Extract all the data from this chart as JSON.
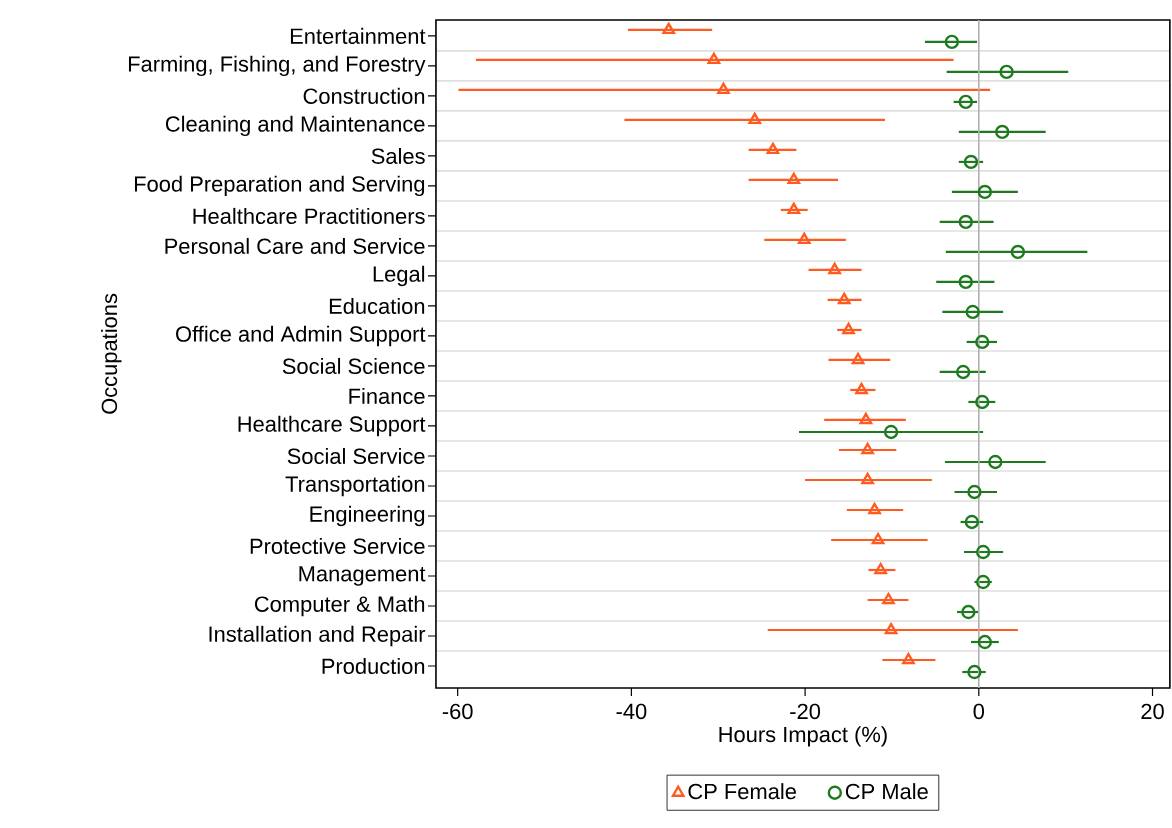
{
  "chart_data": {
    "type": "scatter",
    "orientation": "horizontal",
    "xlabel": "Hours Impact (%)",
    "ylabel": "Occupations",
    "categories": [
      "Entertainment",
      "Farming, Fishing, and Forestry",
      "Construction",
      "Cleaning and Maintenance",
      "Sales",
      "Food Preparation and Serving",
      "Healthcare Practitioners",
      "Personal Care and Service",
      "Legal",
      "Education",
      "Office and Admin Support",
      "Social Science",
      "Finance",
      "Healthcare Support",
      "Social Service",
      "Transportation",
      "Engineering",
      "Protective Service",
      "Management",
      "Computer & Math",
      "Installation and Repair",
      "Production"
    ],
    "series": [
      {
        "name": "CP Female",
        "color": "#ff5a1f",
        "marker": "triangle",
        "values": [
          -35.7,
          -30.5,
          -29.4,
          -25.8,
          -23.7,
          -21.3,
          -21.3,
          -20.1,
          -16.6,
          -15.5,
          -15.0,
          -13.9,
          -13.5,
          -13.0,
          -12.8,
          -12.8,
          -12.0,
          -11.6,
          -11.3,
          -10.4,
          -10.1,
          -8.1
        ],
        "errors": [
          [
            -40.4,
            -30.7
          ],
          [
            -57.9,
            -2.9
          ],
          [
            -59.9,
            1.3
          ],
          [
            -40.8,
            -10.8
          ],
          [
            -26.5,
            -21.0
          ],
          [
            -26.5,
            -16.2
          ],
          [
            -22.8,
            -19.7
          ],
          [
            -24.7,
            -15.3
          ],
          [
            -19.6,
            -13.5
          ],
          [
            -17.4,
            -13.5
          ],
          [
            -16.3,
            -13.5
          ],
          [
            -17.3,
            -10.2
          ],
          [
            -14.8,
            -11.9
          ],
          [
            -17.8,
            -8.4
          ],
          [
            -16.1,
            -9.5
          ],
          [
            -20.0,
            -5.4
          ],
          [
            -15.2,
            -8.7
          ],
          [
            -17.0,
            -5.9
          ],
          [
            -12.7,
            -9.6
          ],
          [
            -12.8,
            -8.1
          ],
          [
            -24.3,
            4.5
          ],
          [
            -11.1,
            -5.0
          ]
        ]
      },
      {
        "name": "CP Male",
        "color": "#1f7a1f",
        "marker": "circle",
        "values": [
          -3.1,
          3.2,
          -1.5,
          2.7,
          -0.9,
          0.7,
          -1.5,
          4.5,
          -1.5,
          -0.7,
          0.4,
          -1.8,
          0.4,
          -10.1,
          1.9,
          -0.5,
          -0.8,
          0.5,
          0.5,
          -1.2,
          0.7,
          -0.5
        ],
        "errors": [
          [
            -6.2,
            -0.2
          ],
          [
            -3.7,
            10.3
          ],
          [
            -2.9,
            -0.2
          ],
          [
            -2.3,
            7.7
          ],
          [
            -2.3,
            0.5
          ],
          [
            -3.1,
            4.5
          ],
          [
            -4.5,
            1.7
          ],
          [
            -3.8,
            12.5
          ],
          [
            -4.9,
            1.8
          ],
          [
            -4.2,
            2.8
          ],
          [
            -1.4,
            2.1
          ],
          [
            -4.5,
            0.8
          ],
          [
            -1.2,
            1.9
          ],
          [
            -20.7,
            0.5
          ],
          [
            -3.9,
            7.7
          ],
          [
            -2.8,
            2.1
          ],
          [
            -2.1,
            0.5
          ],
          [
            -1.7,
            2.8
          ],
          [
            -0.5,
            1.5
          ],
          [
            -2.5,
            0.0
          ],
          [
            -0.9,
            2.3
          ],
          [
            -1.9,
            0.8
          ]
        ]
      }
    ],
    "xlim": [
      -62.5,
      22
    ],
    "xticks": [
      -60,
      -40,
      -20,
      0,
      20
    ],
    "grid": "y",
    "legend": "bottom",
    "ref_lines": [
      {
        "axis": "x",
        "value": 0,
        "color": "#b0b0b0"
      }
    ]
  }
}
